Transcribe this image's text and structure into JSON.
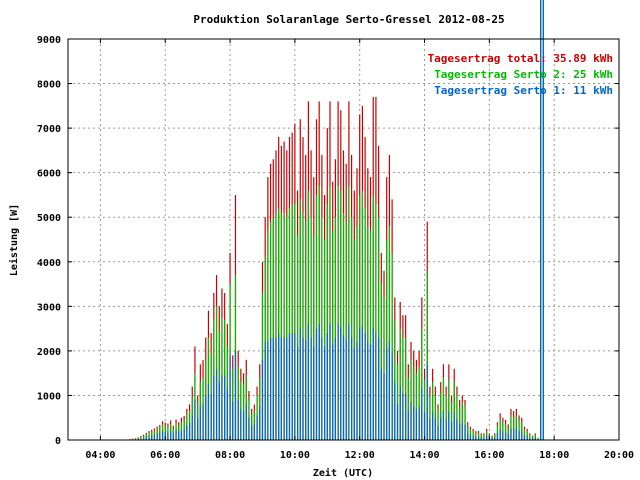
{
  "chart_data": {
    "type": "bar",
    "title": "Produktion Solaranlage Serto-Gressel 2012-08-25",
    "xlabel": "Zeit (UTC)",
    "ylabel": "Leistung [W]",
    "ylim": [
      0,
      9000
    ],
    "xlim_hours": [
      3.0,
      20.0
    ],
    "y_ticks": [
      0,
      1000,
      2000,
      3000,
      4000,
      5000,
      6000,
      7000,
      8000,
      9000
    ],
    "x_ticks": [
      {
        "hour": 4,
        "label": "04:00"
      },
      {
        "hour": 6,
        "label": "06:00"
      },
      {
        "hour": 8,
        "label": "08:00"
      },
      {
        "hour": 10,
        "label": "10:00"
      },
      {
        "hour": 12,
        "label": "12:00"
      },
      {
        "hour": 14,
        "label": "14:00"
      },
      {
        "hour": 16,
        "label": "16:00"
      },
      {
        "hour": 18,
        "label": "18:00"
      },
      {
        "hour": 20,
        "label": "20:00"
      }
    ],
    "grid": true,
    "legend_position": "top-right",
    "series": [
      {
        "name": "Tagesertrag total: 35.89 kWh",
        "color": "#cc0000"
      },
      {
        "name": "Tagesertrag Serto 2: 25 kWh",
        "color": "#00bb00"
      },
      {
        "name": "Tagesertrag Serto 1: 11 kWh",
        "color": "#0066cc"
      }
    ],
    "interval_minutes": 5,
    "x_hours": [
      4.9167,
      5.0,
      5.0833,
      5.1667,
      5.25,
      5.3333,
      5.4167,
      5.5,
      5.5833,
      5.6667,
      5.75,
      5.8333,
      5.9167,
      6.0,
      6.0833,
      6.1667,
      6.25,
      6.3333,
      6.4167,
      6.5,
      6.5833,
      6.6667,
      6.75,
      6.8333,
      6.9167,
      7.0,
      7.0833,
      7.1667,
      7.25,
      7.3333,
      7.4167,
      7.5,
      7.5833,
      7.6667,
      7.75,
      7.8333,
      7.9167,
      8.0,
      8.0833,
      8.1667,
      8.25,
      8.3333,
      8.4167,
      8.5,
      8.5833,
      8.6667,
      8.75,
      8.8333,
      8.9167,
      9.0,
      9.0833,
      9.1667,
      9.25,
      9.3333,
      9.4167,
      9.5,
      9.5833,
      9.6667,
      9.75,
      9.8333,
      9.9167,
      10.0,
      10.0833,
      10.1667,
      10.25,
      10.3333,
      10.4167,
      10.5,
      10.5833,
      10.6667,
      10.75,
      10.8333,
      10.9167,
      11.0,
      11.0833,
      11.1667,
      11.25,
      11.3333,
      11.4167,
      11.5,
      11.5833,
      11.6667,
      11.75,
      11.8333,
      11.9167,
      12.0,
      12.0833,
      12.1667,
      12.25,
      12.3333,
      12.4167,
      12.5,
      12.5833,
      12.6667,
      12.75,
      12.8333,
      12.9167,
      13.0,
      13.0833,
      13.1667,
      13.25,
      13.3333,
      13.4167,
      13.5,
      13.5833,
      13.6667,
      13.75,
      13.8333,
      13.9167,
      14.0,
      14.0833,
      14.1667,
      14.25,
      14.3333,
      14.4167,
      14.5,
      14.5833,
      14.6667,
      14.75,
      14.8333,
      14.9167,
      15.0,
      15.0833,
      15.1667,
      15.25,
      15.3333,
      15.4167,
      15.5,
      15.5833,
      15.6667,
      15.75,
      15.8333,
      15.9167,
      16.0,
      16.0833,
      16.1667,
      16.25,
      16.3333,
      16.4167,
      16.5,
      16.5833,
      16.6667,
      16.75,
      16.8333,
      16.9167,
      17.0,
      17.0833,
      17.1667,
      17.25,
      17.3333,
      17.4167,
      17.5,
      17.5833,
      17.6667
    ],
    "total_w": [
      20,
      30,
      40,
      60,
      90,
      120,
      160,
      200,
      230,
      260,
      300,
      340,
      420,
      390,
      370,
      440,
      320,
      460,
      400,
      500,
      540,
      700,
      800,
      1200,
      2100,
      1000,
      1700,
      1800,
      2300,
      2900,
      2400,
      3300,
      3700,
      3000,
      3400,
      3300,
      2600,
      4200,
      1900,
      5500,
      2000,
      1600,
      1500,
      1800,
      1100,
      700,
      800,
      1200,
      1700,
      4000,
      5000,
      5900,
      6200,
      6300,
      6500,
      6800,
      6600,
      6700,
      6500,
      6800,
      6900,
      7100,
      5600,
      7200,
      6800,
      6400,
      7600,
      6500,
      5900,
      7200,
      7600,
      6400,
      5500,
      7000,
      7600,
      5800,
      6300,
      7600,
      7400,
      6500,
      6200,
      7600,
      6400,
      5600,
      6100,
      7300,
      7500,
      6800,
      6100,
      5900,
      7700,
      7700,
      6600,
      4200,
      3800,
      5900,
      6400,
      5400,
      3200,
      2000,
      3100,
      2800,
      2800,
      1700,
      2200,
      2000,
      1800,
      2000,
      3200,
      1600,
      4900,
      1200,
      1600,
      1200,
      800,
      1300,
      1700,
      1200,
      1700,
      1000,
      1600,
      1200,
      900,
      1000,
      900,
      400,
      300,
      250,
      200,
      200,
      150,
      150,
      250,
      150,
      100,
      150,
      400,
      600,
      500,
      450,
      350,
      700,
      650,
      700,
      550,
      500,
      300,
      250,
      150,
      100,
      150,
      50
    ],
    "serto2_w": [
      10,
      20,
      30,
      40,
      60,
      90,
      130,
      160,
      190,
      210,
      250,
      280,
      350,
      320,
      300,
      360,
      260,
      380,
      330,
      400,
      440,
      580,
      650,
      950,
      1500,
      850,
      1300,
      1400,
      1800,
      2300,
      1950,
      2700,
      3000,
      2450,
      2750,
      2700,
      2100,
      3500,
      1600,
      3700,
      1650,
      1300,
      1250,
      1450,
      900,
      580,
      650,
      1000,
      1400,
      3300,
      4100,
      4700,
      4900,
      5000,
      5100,
      5200,
      5100,
      5100,
      5000,
      5200,
      5300,
      5300,
      4600,
      5400,
      5100,
      4900,
      5600,
      5000,
      4600,
      5500,
      5700,
      5000,
      4500,
      5300,
      5700,
      4700,
      5000,
      5700,
      5600,
      5100,
      4900,
      5700,
      5000,
      4500,
      4800,
      5500,
      5600,
      5200,
      4800,
      4700,
      5500,
      5300,
      5000,
      3500,
      3200,
      4500,
      4800,
      4200,
      2700,
      1700,
      2500,
      2300,
      2300,
      1400,
      1800,
      1650,
      1500,
      1650,
      2500,
      1350,
      3800,
      1000,
      1300,
      1000,
      700,
      1050,
      1400,
      1000,
      1350,
      850,
      1300,
      1000,
      750,
      850,
      750,
      330,
      250,
      200,
      160,
      160,
      120,
      120,
      200,
      120,
      80,
      120,
      330,
      480,
      400,
      360,
      280,
      550,
      520,
      550,
      440,
      400,
      240,
      200,
      120,
      80,
      120,
      40
    ],
    "serto1_w": [
      5,
      10,
      15,
      20,
      30,
      40,
      60,
      80,
      100,
      120,
      140,
      160,
      200,
      180,
      170,
      210,
      150,
      220,
      190,
      230,
      250,
      330,
      380,
      550,
      900,
      500,
      750,
      800,
      1000,
      1250,
      1050,
      1450,
      1600,
      1300,
      1450,
      1450,
      1150,
      1900,
      850,
      2000,
      900,
      700,
      650,
      800,
      500,
      320,
      350,
      550,
      750,
      1800,
      2200,
      2200,
      2300,
      2300,
      2300,
      2400,
      2300,
      2300,
      2300,
      2400,
      2400,
      2400,
      2100,
      2500,
      2300,
      2250,
      2600,
      2300,
      2100,
      2500,
      2600,
      2300,
      2100,
      2400,
      2600,
      2150,
      2300,
      2600,
      2550,
      2350,
      2250,
      2600,
      2300,
      2050,
      2200,
      2500,
      2550,
      2400,
      2200,
      2150,
      2500,
      2400,
      2300,
      1600,
      1500,
      2050,
      2200,
      1950,
      1300,
      800,
      1200,
      1050,
      1050,
      650,
      850,
      750,
      700,
      750,
      1150,
      620,
      1700,
      480,
      620,
      480,
      320,
      500,
      650,
      470,
      630,
      400,
      600,
      470,
      350,
      400,
      350,
      160,
      120,
      90,
      75,
      75,
      55,
      55,
      95,
      55,
      40,
      55,
      160,
      230,
      190,
      170,
      130,
      260,
      250,
      260,
      210,
      190,
      110,
      95,
      55,
      35,
      55,
      20
    ]
  }
}
